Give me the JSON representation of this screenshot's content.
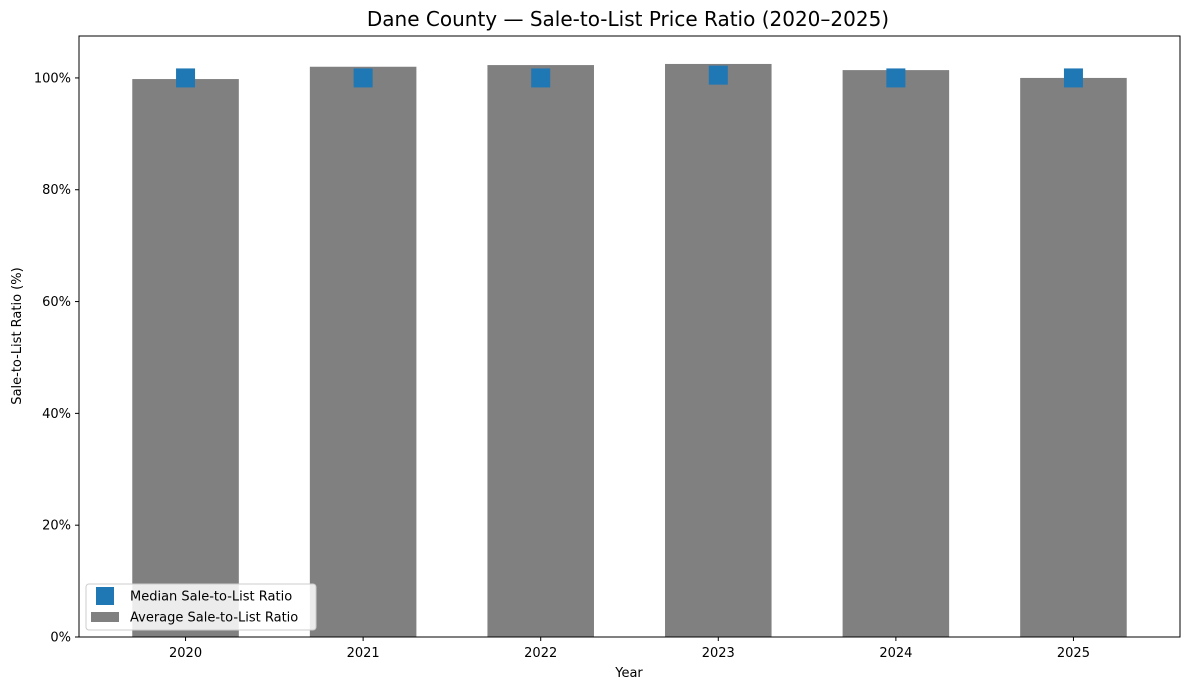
{
  "chart_data": {
    "type": "bar",
    "title": "Dane County — Sale-to-List Price Ratio (2020–2025)",
    "xlabel": "Year",
    "ylabel": "Sale-to-List Ratio (%)",
    "categories": [
      "2020",
      "2021",
      "2022",
      "2023",
      "2024",
      "2025"
    ],
    "ylim": [
      0,
      107.5
    ],
    "yticks": [
      0,
      20,
      40,
      60,
      80,
      100
    ],
    "ytick_labels": [
      "0%",
      "20%",
      "40%",
      "60%",
      "80%",
      "100%"
    ],
    "series": [
      {
        "name": "Average Sale-to-List Ratio",
        "kind": "bar",
        "color": "#808080",
        "values": [
          99.8,
          102.0,
          102.3,
          102.5,
          101.4,
          100.0
        ]
      },
      {
        "name": "Median Sale-to-List Ratio",
        "kind": "marker",
        "marker": "square",
        "color": "#1f77b4",
        "values": [
          100.0,
          100.0,
          100.0,
          100.5,
          100.0,
          100.0
        ]
      }
    ],
    "legend": {
      "position": "lower-left",
      "order": [
        "Median Sale-to-List Ratio",
        "Average Sale-to-List Ratio"
      ]
    },
    "grid": false
  }
}
